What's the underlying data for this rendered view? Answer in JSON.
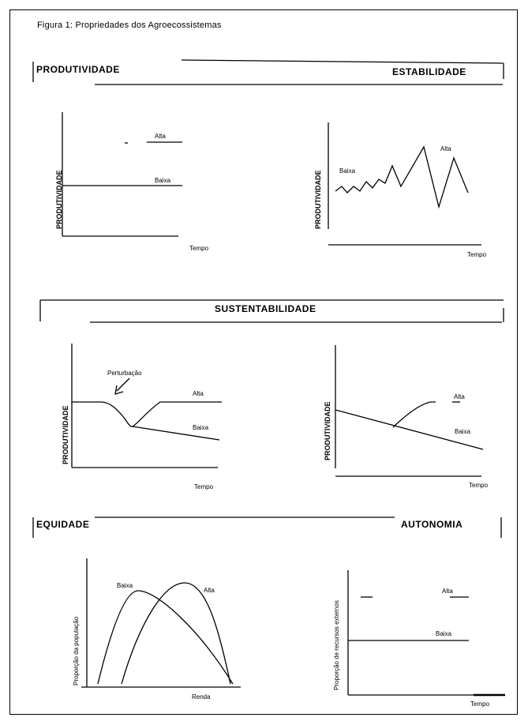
{
  "figure_title": "Figura 1: Propriedades dos Agroecossistemas",
  "sections": {
    "produtividade": "PRODUTIVIDADE",
    "estabilidade": "ESTABILIDADE",
    "sustentabilidade": "SUSTENTABILIDADE",
    "equidade": "EQUIDADE",
    "autonomia": "AUTONOMIA"
  },
  "panels": {
    "p1": {
      "ylabel": "PRODUTIVIDADE",
      "xlabel": "Tempo",
      "alto": "Alta",
      "baixo": "Baixa"
    },
    "p2": {
      "ylabel": "PRODUTIVIDADE",
      "xlabel": "Tempo",
      "baixa": "Baixa",
      "alta": "Alta"
    },
    "p3": {
      "ylabel": "PRODUTIVIDADE",
      "xlabel": "Tempo",
      "perturbacao": "Perturbação",
      "alta": "Alta",
      "baixa": "Baixa"
    },
    "p4": {
      "ylabel": "PRODUTIVIDADE",
      "xlabel": "Tempo",
      "alta": "Alta",
      "baixa": "Baixa"
    },
    "p5": {
      "ylabel": "Proporção da população",
      "xlabel": "Renda",
      "baixa": "Baixa",
      "alta": "Alta"
    },
    "p6": {
      "ylabel": "Proporção de recursos externos",
      "xlabel": "Tempo",
      "alta": "Alta",
      "baixa": "Baixa"
    }
  }
}
